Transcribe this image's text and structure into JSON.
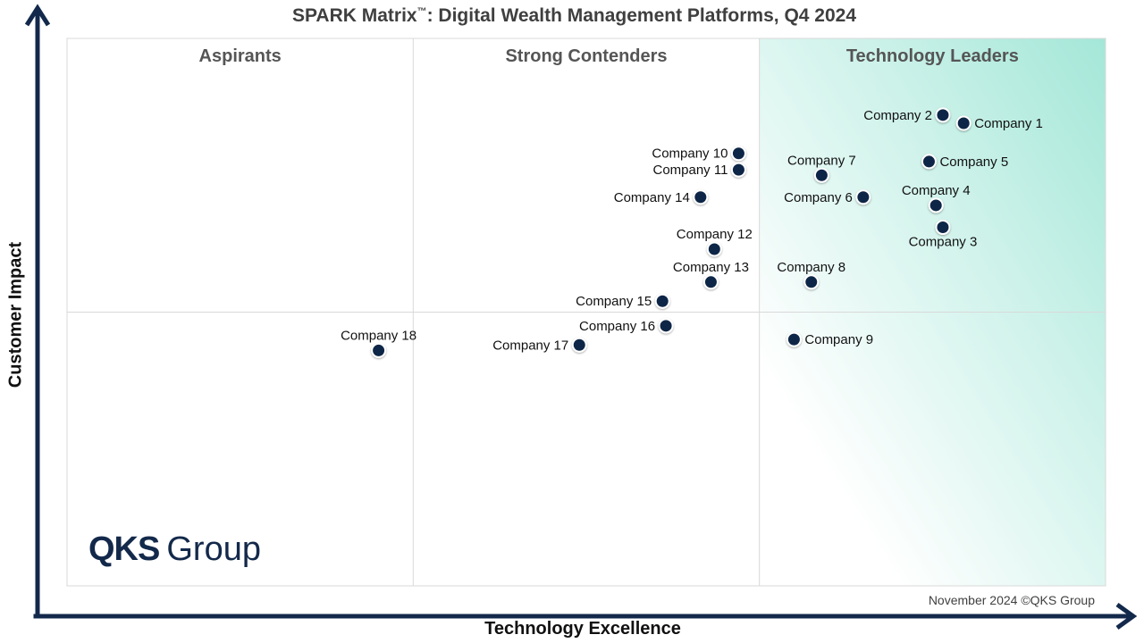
{
  "title": {
    "main": "SPARK Matrix",
    "trademark": "™",
    "rest": ": Digital Wealth Management Platforms, Q4 2024"
  },
  "footer": "November 2024 ©QKS Group",
  "logo": {
    "strong": "QKS",
    "light": "Group"
  },
  "colors": {
    "axis": "#13294b",
    "point": "#0d2547",
    "leaders_gradient": "#a4e7d8",
    "grid": "#d9d9d9"
  },
  "chart_data": {
    "type": "scatter",
    "title": "SPARK Matrix™: Digital Wealth Management Platforms, Q4 2024",
    "xlabel": "Technology Excellence",
    "ylabel": "Customer Impact",
    "xlim": [
      0,
      3
    ],
    "ylim": [
      0,
      2
    ],
    "grid": true,
    "quadrants": [
      "Aspirants",
      "Strong Contenders",
      "Technology Leaders"
    ],
    "points": [
      {
        "name": "Company 1",
        "x": 2.59,
        "y": 1.69,
        "label_side": "right"
      },
      {
        "name": "Company 2",
        "x": 2.53,
        "y": 1.72,
        "label_side": "left"
      },
      {
        "name": "Company 3",
        "x": 2.53,
        "y": 1.31,
        "label_side": "below"
      },
      {
        "name": "Company 4",
        "x": 2.51,
        "y": 1.39,
        "label_side": "above"
      },
      {
        "name": "Company 5",
        "x": 2.49,
        "y": 1.55,
        "label_side": "right"
      },
      {
        "name": "Company 6",
        "x": 2.3,
        "y": 1.42,
        "label_side": "left"
      },
      {
        "name": "Company 7",
        "x": 2.18,
        "y": 1.5,
        "label_side": "above"
      },
      {
        "name": "Company 8",
        "x": 2.15,
        "y": 1.11,
        "label_side": "above"
      },
      {
        "name": "Company 9",
        "x": 2.1,
        "y": 0.9,
        "label_side": "right"
      },
      {
        "name": "Company 10",
        "x": 1.94,
        "y": 1.58,
        "label_side": "left"
      },
      {
        "name": "Company 11",
        "x": 1.94,
        "y": 1.52,
        "label_side": "left"
      },
      {
        "name": "Company 12",
        "x": 1.87,
        "y": 1.23,
        "label_side": "above"
      },
      {
        "name": "Company 13",
        "x": 1.86,
        "y": 1.11,
        "label_side": "above"
      },
      {
        "name": "Company 14",
        "x": 1.83,
        "y": 1.42,
        "label_side": "left"
      },
      {
        "name": "Company 15",
        "x": 1.72,
        "y": 1.04,
        "label_side": "left"
      },
      {
        "name": "Company 16",
        "x": 1.73,
        "y": 0.95,
        "label_side": "left"
      },
      {
        "name": "Company 17",
        "x": 1.48,
        "y": 0.88,
        "label_side": "left"
      },
      {
        "name": "Company 18",
        "x": 0.9,
        "y": 0.86,
        "label_side": "above"
      }
    ]
  }
}
